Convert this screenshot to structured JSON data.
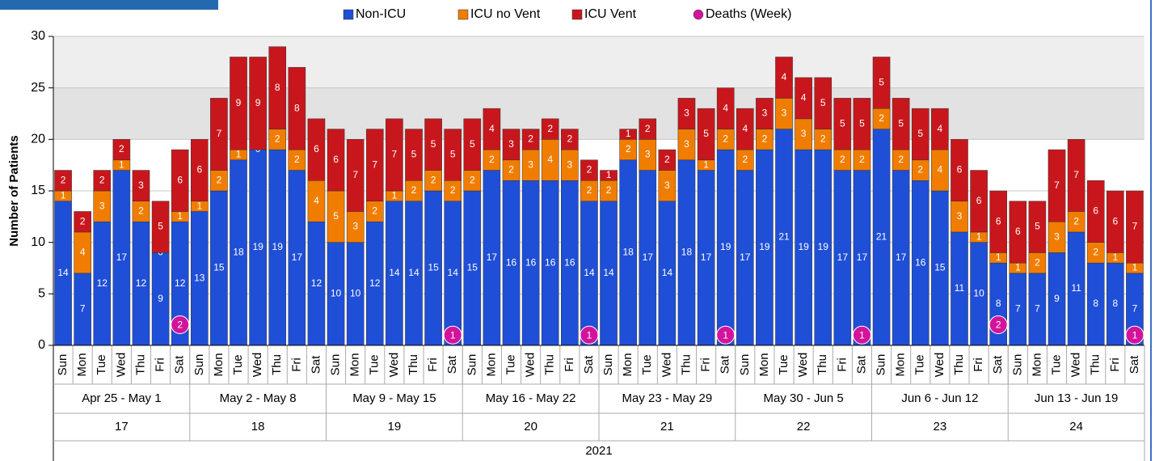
{
  "chart_data": {
    "type": "bar",
    "stacked": true,
    "y_label": "Number of Patients",
    "ylim": [
      0,
      30
    ],
    "yticks": [
      0,
      5,
      10,
      15,
      20,
      25,
      30
    ],
    "categories": [
      "Sun",
      "Mon",
      "Tue",
      "Wed",
      "Thu",
      "Fri",
      "Sat",
      "Sun",
      "Mon",
      "Tue",
      "Wed",
      "Thu",
      "Fri",
      "Sat",
      "Sun",
      "Mon",
      "Tue",
      "Wed",
      "Thu",
      "Fri",
      "Sat",
      "Sun",
      "Mon",
      "Tue",
      "Wed",
      "Thu",
      "Fri",
      "Sat",
      "Sun",
      "Mon",
      "Tue",
      "Wed",
      "Thu",
      "Fri",
      "Sat",
      "Sun",
      "Mon",
      "Tue",
      "Wed",
      "Thu",
      "Fri",
      "Sat",
      "Sun",
      "Mon",
      "Tue",
      "Wed",
      "Thu",
      "Fri",
      "Sat",
      "Sun",
      "Mon",
      "Tue",
      "Wed",
      "Thu",
      "Fri",
      "Sat"
    ],
    "week_groups": [
      {
        "range": "Apr 25 - May 1",
        "week": "17"
      },
      {
        "range": "May 2 - May 8",
        "week": "18"
      },
      {
        "range": "May 9 - May 15",
        "week": "19"
      },
      {
        "range": "May 16 - May 22",
        "week": "20"
      },
      {
        "range": "May 23 - May 29",
        "week": "21"
      },
      {
        "range": "May 30 - Jun 5",
        "week": "22"
      },
      {
        "range": "Jun 6 - Jun 12",
        "week": "23"
      },
      {
        "range": "Jun 13 - Jun 19",
        "week": "24"
      }
    ],
    "year": "2021",
    "series": [
      {
        "name": "Non-ICU",
        "color": "#1f4fd6",
        "values": [
          14,
          7,
          12,
          17,
          12,
          9,
          12,
          13,
          15,
          18,
          19,
          19,
          17,
          12,
          10,
          10,
          12,
          14,
          14,
          15,
          14,
          15,
          17,
          16,
          16,
          16,
          16,
          14,
          14,
          18,
          17,
          14,
          18,
          17,
          19,
          17,
          19,
          21,
          19,
          19,
          17,
          17,
          21,
          17,
          16,
          15,
          11,
          10,
          8,
          7,
          7,
          9,
          11,
          8,
          8,
          7
        ]
      },
      {
        "name": "ICU no Vent",
        "color": "#f07d00",
        "values": [
          1,
          4,
          3,
          1,
          2,
          0,
          1,
          1,
          2,
          1,
          0,
          2,
          2,
          4,
          5,
          3,
          2,
          1,
          2,
          2,
          2,
          2,
          2,
          2,
          3,
          4,
          3,
          2,
          2,
          2,
          3,
          3,
          3,
          1,
          2,
          2,
          2,
          3,
          3,
          2,
          2,
          2,
          2,
          2,
          2,
          4,
          3,
          1,
          1,
          1,
          2,
          3,
          2,
          2,
          1,
          1
        ]
      },
      {
        "name": "ICU Vent",
        "color": "#c8171c",
        "values": [
          2,
          2,
          2,
          2,
          3,
          5,
          6,
          6,
          7,
          9,
          9,
          8,
          8,
          6,
          6,
          7,
          7,
          7,
          5,
          5,
          5,
          5,
          4,
          3,
          2,
          2,
          2,
          2,
          1,
          1,
          2,
          2,
          3,
          5,
          4,
          4,
          3,
          4,
          4,
          5,
          5,
          5,
          5,
          5,
          5,
          4,
          6,
          6,
          6,
          6,
          5,
          7,
          7,
          6,
          6,
          7
        ]
      },
      {
        "name": "Deaths (Week)",
        "color": "#d3139b",
        "marker": "circle",
        "values": [
          null,
          null,
          null,
          null,
          null,
          null,
          2,
          null,
          null,
          null,
          null,
          null,
          null,
          null,
          null,
          null,
          null,
          null,
          null,
          null,
          1,
          null,
          null,
          null,
          null,
          null,
          null,
          1,
          null,
          null,
          null,
          null,
          null,
          null,
          1,
          null,
          null,
          null,
          null,
          null,
          null,
          1,
          null,
          null,
          null,
          null,
          null,
          null,
          2,
          null,
          null,
          null,
          null,
          null,
          null,
          1
        ]
      }
    ]
  }
}
